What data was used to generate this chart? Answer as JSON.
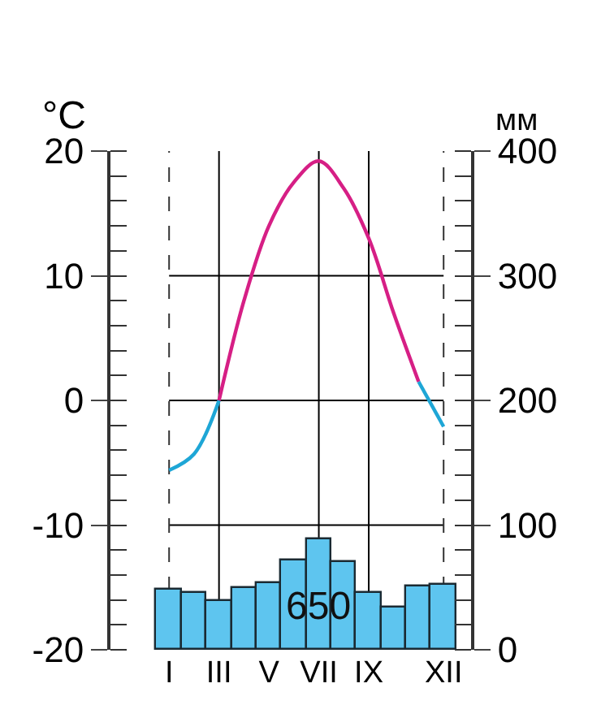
{
  "chart_data": {
    "type": "bar",
    "ylabel": "°C",
    "y2label": "мм",
    "categories": [
      "I",
      null,
      "III",
      null,
      "V",
      null,
      "VII",
      null,
      "IX",
      null,
      null,
      "XII"
    ],
    "ylim": [
      -20,
      20
    ],
    "yticks": [
      -20,
      -10,
      0,
      10,
      20
    ],
    "y2lim": [
      0,
      400
    ],
    "y2ticks": [
      0,
      100,
      200,
      300,
      400
    ],
    "series": [
      {
        "axis": "y2",
        "color": "#5ec5ef",
        "values": [
          48,
          46,
          39,
          50,
          54,
          72,
          88,
          70,
          46,
          34,
          51,
          52
        ]
      },
      {
        "type": "line",
        "axis": "y",
        "color": "#1ea6d6",
        "values": [
          -5.6,
          -4.3,
          0,
          null,
          null,
          null,
          null,
          null,
          null,
          null,
          null,
          null
        ]
      },
      {
        "type": "line",
        "axis": "y",
        "color": "#d61f85",
        "values": [
          null,
          null,
          0,
          8,
          14,
          17.5,
          19.2,
          17,
          13,
          7,
          1.5,
          null
        ]
      },
      {
        "type": "line",
        "axis": "y",
        "color": "#1ea6d6",
        "values": [
          null,
          null,
          null,
          null,
          null,
          null,
          null,
          null,
          null,
          null,
          1.5,
          -2.1
        ]
      }
    ],
    "ref_lines": [
      {
        "axis": "y",
        "value": 10,
        "color": "#000000"
      },
      {
        "axis": "y",
        "value": 0,
        "color": "#000000"
      },
      {
        "axis": "y",
        "value": -10,
        "color": "#000000"
      },
      {
        "axis": "x",
        "value": "III",
        "color": "#000000"
      },
      {
        "axis": "x",
        "value": "VII",
        "color": "#000000"
      },
      {
        "axis": "x",
        "value": "IX",
        "color": "#000000"
      },
      {
        "axis": "x",
        "value": "I",
        "color": "#333333",
        "line_style": "dashed"
      },
      {
        "axis": "x",
        "value": "XII",
        "color": "#333333",
        "line_style": "dashed"
      }
    ],
    "annotations": [
      {
        "text": "650",
        "x": "VII",
        "y": -16.5
      }
    ],
    "marker": "none"
  }
}
